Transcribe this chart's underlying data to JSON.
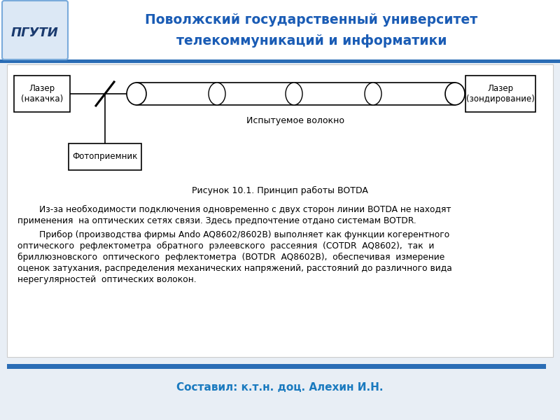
{
  "bg_color": "#e8eef5",
  "header_bg": "#ffffff",
  "header_title_line1": "Поволжский государственный университет",
  "header_title_line2": "телекоммуникаций и информатики",
  "header_title_color": "#1a5cb5",
  "header_bar_color": "#2a6db5",
  "box_laser1_text": "Лазер\n(накачка)",
  "box_laser2_text": "Лазер\n(зондирование)",
  "box_photo_text": "Фотоприемник",
  "fiber_label": "Испытуемое волокно",
  "figure_caption": "Рисунок 10.1. Принцип работы BOTDA",
  "para1_indent": "        Из-за необходимости подключения одновременно с двух сторон линии BOTDA не находят",
  "para1_line2": "применения  на оптических сетях связи. Здесь предпочтение отдано системам BOTDR.",
  "para2_indent": "        Прибор (производства фирмы Ando AQ8602/8602B) выполняет как функции когерентного",
  "para2_line2": "оптического  рефлектометра  обратного  рэлеевского  рассеяния  (COTDR  AQ8602),  так  и",
  "para2_line3": "бриллюзновского  оптического  рефлектометра  (BOTDR  AQ8602B),  обеспечивая  измерение",
  "para2_line4": "оценок затухания, распределения механических напряжений, расстояний до различного вида",
  "para2_line5": "нерегулярностей  оптических волокон.",
  "footer_text": "Составил: к.т.н. доц. Алехин И.Н.",
  "footer_color": "#1a7abf",
  "footer_bar_color": "#2a6db5",
  "box_color": "#000000",
  "box_fill": "#ffffff",
  "line_color": "#000000",
  "text_color": "#000000",
  "logo_border_color": "#7aabdb",
  "logo_bg": "#dce8f5",
  "logo_text_color": "#1a3a6e",
  "content_box_color": "#cccccc",
  "content_box_fill": "#ffffff"
}
